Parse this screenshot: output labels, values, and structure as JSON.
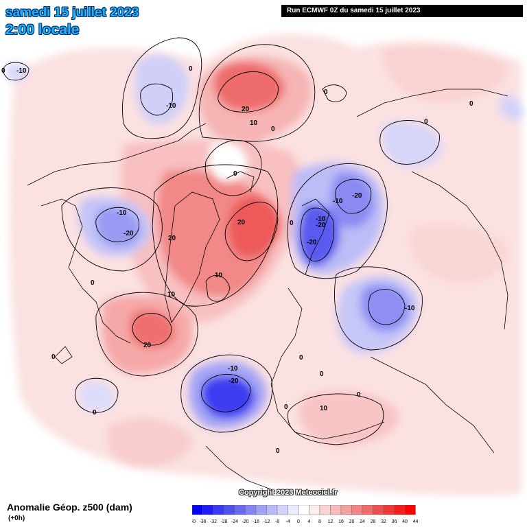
{
  "header": {
    "date": "samedi 15 juillet 2023",
    "time": "2:00 locale",
    "run": "Run ECMWF 0Z du samedi 15 juillet 2023"
  },
  "copyright": "Copyright 2023 Meteociel.fr",
  "footer": {
    "title": "Anomalie Géop. z500 (dam)",
    "subtitle": "(+0h)"
  },
  "legend": {
    "values": [
      "-40",
      "-36",
      "-32",
      "-28",
      "-24",
      "-20",
      "-16",
      "-12",
      "-8",
      "-4",
      "0",
      "4",
      "8",
      "12",
      "16",
      "20",
      "24",
      "28",
      "32",
      "36",
      "40",
      "44"
    ],
    "colors": [
      "#0000ff",
      "#1c1cf6",
      "#3838f0",
      "#5050ea",
      "#6a6aef",
      "#8484f2",
      "#a0a0f5",
      "#babaf8",
      "#d4d4fb",
      "#ececfd",
      "#ffffff",
      "#fdecec",
      "#fbd4d4",
      "#f8baba",
      "#f5a0a0",
      "#f28484",
      "#ef6a6a",
      "#ea5050",
      "#f03838",
      "#f61c1c",
      "#ff0000"
    ]
  },
  "contour_labels": [
    {
      "text": "0"
    },
    {
      "text": "-10"
    },
    {
      "text": "0"
    },
    {
      "text": "-10"
    },
    {
      "text": "0"
    },
    {
      "text": "20"
    },
    {
      "text": "10"
    },
    {
      "text": "0"
    },
    {
      "text": "0"
    },
    {
      "text": "0"
    },
    {
      "text": "0"
    },
    {
      "text": "-10"
    },
    {
      "text": "-20"
    },
    {
      "text": "-10"
    },
    {
      "text": "-20"
    },
    {
      "text": "20"
    },
    {
      "text": "20"
    },
    {
      "text": "0"
    },
    {
      "text": "-10"
    },
    {
      "text": "-20"
    },
    {
      "text": "-20"
    },
    {
      "text": "0"
    },
    {
      "text": "10"
    },
    {
      "text": "10"
    },
    {
      "text": "-10"
    },
    {
      "text": "20"
    },
    {
      "text": "0"
    },
    {
      "text": "0"
    },
    {
      "text": "0"
    },
    {
      "text": "0"
    },
    {
      "text": "-10"
    },
    {
      "text": "-20"
    },
    {
      "text": "0"
    },
    {
      "text": "10"
    },
    {
      "text": "0"
    },
    {
      "text": "0"
    }
  ],
  "colors": {
    "title": "#19b5ff",
    "positive_strong": "#ee5050",
    "negative_strong": "#3a3af2"
  }
}
